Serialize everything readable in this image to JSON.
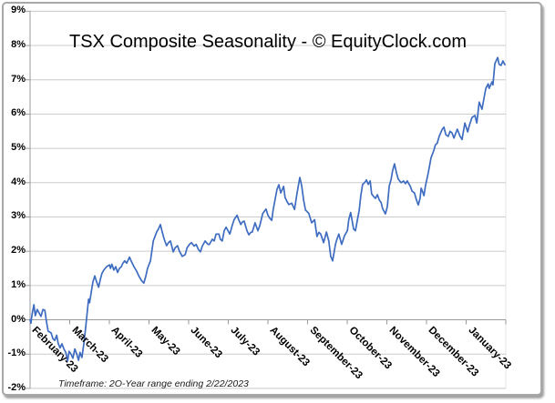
{
  "chart": {
    "title": "TSX Composite Seasonality - © EquityClock.com",
    "footnote": "Timeframe: 2O-Year range ending 2/22/2023",
    "line_color": "#3e6cc0",
    "gridline_color": "#cbcbcb",
    "axis_color": "#9a9a9a"
  },
  "chart_data": {
    "type": "line",
    "title": "TSX Composite Seasonality - © EquityClock.com",
    "x_categories": [
      "February-23",
      "March-23",
      "April-23",
      "May-23",
      "June-23",
      "July-23",
      "August-23",
      "September-23",
      "October-23",
      "November-23",
      "December-23",
      "January-23"
    ],
    "y_tick_labels": [
      "9%",
      "8%",
      "7%",
      "6%",
      "5%",
      "4%",
      "3%",
      "2%",
      "1%",
      "0%",
      "-1%",
      "-2%"
    ],
    "ylim": [
      -2,
      9
    ],
    "y_unit": "percent gain relative to Feb 1",
    "x_unit": "fraction of 12-month span starting February",
    "grid": "horizontal",
    "legend": "none",
    "series": [
      {
        "points": [
          [
            0.0,
            0.0
          ],
          [
            0.002,
            -0.1
          ],
          [
            0.004,
            0.15
          ],
          [
            0.008,
            0.44
          ],
          [
            0.011,
            0.12
          ],
          [
            0.015,
            0.3
          ],
          [
            0.019,
            0.2
          ],
          [
            0.023,
            0.1
          ],
          [
            0.027,
            0.3
          ],
          [
            0.031,
            0.28
          ],
          [
            0.034,
            0.0
          ],
          [
            0.038,
            -0.33
          ],
          [
            0.044,
            -0.38
          ],
          [
            0.048,
            -0.55
          ],
          [
            0.052,
            -0.6
          ],
          [
            0.056,
            -0.45
          ],
          [
            0.059,
            -0.68
          ],
          [
            0.063,
            -0.82
          ],
          [
            0.067,
            -0.7
          ],
          [
            0.071,
            -0.85
          ],
          [
            0.075,
            -0.95
          ],
          [
            0.079,
            -1.2
          ],
          [
            0.082,
            -0.92
          ],
          [
            0.086,
            -1.0
          ],
          [
            0.09,
            -1.12
          ],
          [
            0.094,
            -0.85
          ],
          [
            0.098,
            -1.0
          ],
          [
            0.102,
            -1.18
          ],
          [
            0.105,
            -0.95
          ],
          [
            0.109,
            -1.1
          ],
          [
            0.113,
            -0.7
          ],
          [
            0.117,
            -0.2
          ],
          [
            0.121,
            0.35
          ],
          [
            0.123,
            0.6
          ],
          [
            0.125,
            0.5
          ],
          [
            0.128,
            0.75
          ],
          [
            0.132,
            1.1
          ],
          [
            0.136,
            1.28
          ],
          [
            0.14,
            1.1
          ],
          [
            0.144,
            0.95
          ],
          [
            0.148,
            1.2
          ],
          [
            0.151,
            1.35
          ],
          [
            0.155,
            1.45
          ],
          [
            0.161,
            1.55
          ],
          [
            0.167,
            1.6
          ],
          [
            0.169,
            1.5
          ],
          [
            0.172,
            1.62
          ],
          [
            0.176,
            1.45
          ],
          [
            0.18,
            1.55
          ],
          [
            0.184,
            1.38
          ],
          [
            0.188,
            1.5
          ],
          [
            0.192,
            1.55
          ],
          [
            0.195,
            1.65
          ],
          [
            0.199,
            1.72
          ],
          [
            0.203,
            1.65
          ],
          [
            0.209,
            1.83
          ],
          [
            0.213,
            1.7
          ],
          [
            0.218,
            1.56
          ],
          [
            0.224,
            1.42
          ],
          [
            0.228,
            1.3
          ],
          [
            0.234,
            1.15
          ],
          [
            0.239,
            1.07
          ],
          [
            0.243,
            1.25
          ],
          [
            0.247,
            1.5
          ],
          [
            0.253,
            1.72
          ],
          [
            0.259,
            2.3
          ],
          [
            0.266,
            2.56
          ],
          [
            0.27,
            2.65
          ],
          [
            0.274,
            2.78
          ],
          [
            0.278,
            2.55
          ],
          [
            0.282,
            2.35
          ],
          [
            0.287,
            2.16
          ],
          [
            0.291,
            2.25
          ],
          [
            0.295,
            2.3
          ],
          [
            0.301,
            1.98
          ],
          [
            0.305,
            2.1
          ],
          [
            0.31,
            2.16
          ],
          [
            0.314,
            2.0
          ],
          [
            0.32,
            1.85
          ],
          [
            0.326,
            1.9
          ],
          [
            0.33,
            2.1
          ],
          [
            0.335,
            2.2
          ],
          [
            0.339,
            2.25
          ],
          [
            0.345,
            2.15
          ],
          [
            0.349,
            2.2
          ],
          [
            0.354,
            2.05
          ],
          [
            0.358,
            1.98
          ],
          [
            0.362,
            2.15
          ],
          [
            0.368,
            2.3
          ],
          [
            0.374,
            2.2
          ],
          [
            0.377,
            2.2
          ],
          [
            0.383,
            2.35
          ],
          [
            0.387,
            2.3
          ],
          [
            0.391,
            2.5
          ],
          [
            0.397,
            2.5
          ],
          [
            0.4,
            2.35
          ],
          [
            0.404,
            2.3
          ],
          [
            0.408,
            2.6
          ],
          [
            0.412,
            2.7
          ],
          [
            0.416,
            2.6
          ],
          [
            0.42,
            2.5
          ],
          [
            0.425,
            2.75
          ],
          [
            0.429,
            2.92
          ],
          [
            0.435,
            3.05
          ],
          [
            0.439,
            2.9
          ],
          [
            0.443,
            2.78
          ],
          [
            0.446,
            2.85
          ],
          [
            0.45,
            2.88
          ],
          [
            0.456,
            2.6
          ],
          [
            0.46,
            2.48
          ],
          [
            0.464,
            2.55
          ],
          [
            0.467,
            2.56
          ],
          [
            0.473,
            2.83
          ],
          [
            0.479,
            2.6
          ],
          [
            0.483,
            2.75
          ],
          [
            0.489,
            3.1
          ],
          [
            0.496,
            3.23
          ],
          [
            0.5,
            3.05
          ],
          [
            0.504,
            2.96
          ],
          [
            0.508,
            2.9
          ],
          [
            0.511,
            3.2
          ],
          [
            0.515,
            3.5
          ],
          [
            0.519,
            3.8
          ],
          [
            0.523,
            3.94
          ],
          [
            0.527,
            3.7
          ],
          [
            0.533,
            3.89
          ],
          [
            0.536,
            3.57
          ],
          [
            0.54,
            3.45
          ],
          [
            0.544,
            3.36
          ],
          [
            0.55,
            3.4
          ],
          [
            0.556,
            3.22
          ],
          [
            0.561,
            3.67
          ],
          [
            0.567,
            4.15
          ],
          [
            0.571,
            3.9
          ],
          [
            0.575,
            3.5
          ],
          [
            0.579,
            3.2
          ],
          [
            0.582,
            3.16
          ],
          [
            0.586,
            3.1
          ],
          [
            0.592,
            2.83
          ],
          [
            0.598,
            2.92
          ],
          [
            0.603,
            2.43
          ],
          [
            0.607,
            2.55
          ],
          [
            0.611,
            2.5
          ],
          [
            0.617,
            2.25
          ],
          [
            0.623,
            2.56
          ],
          [
            0.628,
            2.3
          ],
          [
            0.632,
            1.85
          ],
          [
            0.636,
            1.72
          ],
          [
            0.642,
            2.2
          ],
          [
            0.645,
            2.35
          ],
          [
            0.649,
            2.5
          ],
          [
            0.655,
            2.2
          ],
          [
            0.661,
            2.45
          ],
          [
            0.667,
            2.6
          ],
          [
            0.67,
            2.92
          ],
          [
            0.674,
            3.13
          ],
          [
            0.68,
            2.65
          ],
          [
            0.684,
            2.6
          ],
          [
            0.688,
            2.9
          ],
          [
            0.692,
            3.2
          ],
          [
            0.695,
            3.6
          ],
          [
            0.699,
            3.95
          ],
          [
            0.703,
            4.0
          ],
          [
            0.707,
            4.08
          ],
          [
            0.711,
            3.95
          ],
          [
            0.715,
            4.05
          ],
          [
            0.718,
            3.67
          ],
          [
            0.722,
            3.6
          ],
          [
            0.726,
            3.54
          ],
          [
            0.73,
            3.65
          ],
          [
            0.734,
            3.5
          ],
          [
            0.738,
            3.42
          ],
          [
            0.741,
            3.25
          ],
          [
            0.747,
            3.09
          ],
          [
            0.751,
            3.3
          ],
          [
            0.755,
            3.9
          ],
          [
            0.759,
            4.1
          ],
          [
            0.762,
            4.35
          ],
          [
            0.766,
            4.55
          ],
          [
            0.77,
            4.3
          ],
          [
            0.774,
            4.1
          ],
          [
            0.78,
            4.0
          ],
          [
            0.785,
            4.05
          ],
          [
            0.789,
            3.97
          ],
          [
            0.793,
            4.05
          ],
          [
            0.799,
            3.9
          ],
          [
            0.803,
            3.75
          ],
          [
            0.808,
            3.7
          ],
          [
            0.812,
            3.5
          ],
          [
            0.816,
            3.35
          ],
          [
            0.82,
            3.55
          ],
          [
            0.822,
            3.84
          ],
          [
            0.826,
            3.7
          ],
          [
            0.828,
            3.62
          ],
          [
            0.831,
            3.9
          ],
          [
            0.837,
            4.28
          ],
          [
            0.843,
            4.73
          ],
          [
            0.849,
            4.95
          ],
          [
            0.852,
            5.1
          ],
          [
            0.856,
            5.15
          ],
          [
            0.86,
            5.35
          ],
          [
            0.866,
            5.55
          ],
          [
            0.87,
            5.62
          ],
          [
            0.874,
            5.4
          ],
          [
            0.879,
            5.35
          ],
          [
            0.883,
            5.5
          ],
          [
            0.887,
            5.45
          ],
          [
            0.891,
            5.3
          ],
          [
            0.895,
            5.45
          ],
          [
            0.898,
            5.56
          ],
          [
            0.904,
            5.35
          ],
          [
            0.908,
            5.26
          ],
          [
            0.914,
            5.74
          ],
          [
            0.92,
            5.48
          ],
          [
            0.923,
            5.65
          ],
          [
            0.929,
            5.9
          ],
          [
            0.935,
            5.96
          ],
          [
            0.939,
            5.74
          ],
          [
            0.944,
            6.35
          ],
          [
            0.95,
            6.14
          ],
          [
            0.954,
            6.45
          ],
          [
            0.958,
            6.75
          ],
          [
            0.963,
            6.88
          ],
          [
            0.965,
            6.75
          ],
          [
            0.971,
            6.94
          ],
          [
            0.973,
            6.85
          ],
          [
            0.977,
            7.47
          ],
          [
            0.983,
            7.65
          ],
          [
            0.986,
            7.45
          ],
          [
            0.99,
            7.42
          ],
          [
            0.994,
            7.55
          ],
          [
            0.998,
            7.44
          ]
        ]
      }
    ]
  }
}
